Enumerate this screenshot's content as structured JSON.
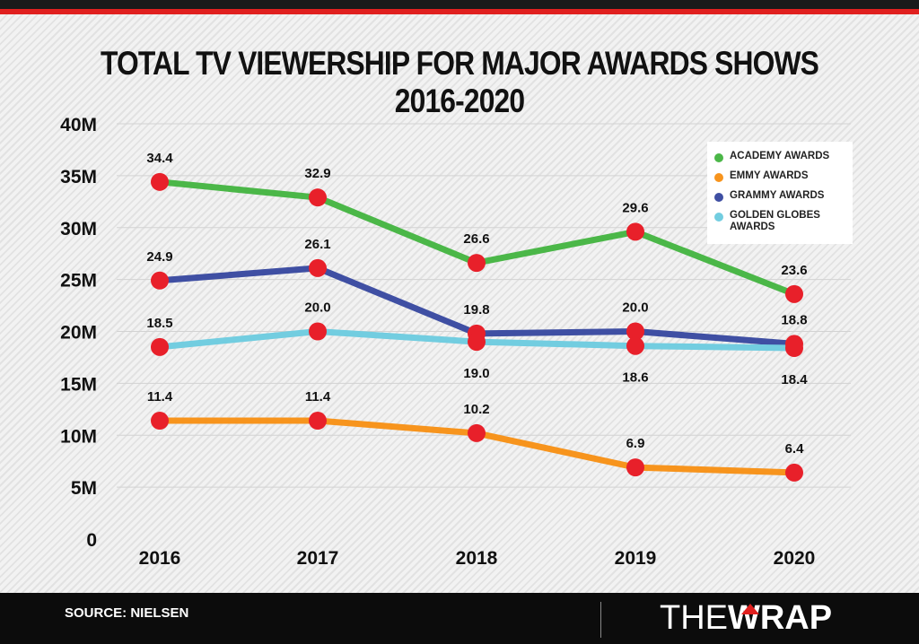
{
  "title": "TOTAL TV VIEWERSHIP FOR MAJOR AWARDS SHOWS 2016-2020",
  "source": "SOURCE: NIELSEN",
  "logo": {
    "part1": "THE",
    "part2": "WRAP"
  },
  "colors": {
    "accent": "#e0201f",
    "marker": "#e8202a"
  },
  "chart_data": {
    "type": "line",
    "title": "TOTAL TV VIEWERSHIP FOR MAJOR AWARDS SHOWS 2016-2020",
    "x": [
      "2016",
      "2017",
      "2018",
      "2019",
      "2020"
    ],
    "ylim": [
      0,
      40
    ],
    "ytick_values": [
      0,
      5,
      10,
      15,
      20,
      25,
      30,
      35,
      40
    ],
    "ytick_labels": [
      "0",
      "5M",
      "10M",
      "15M",
      "20M",
      "25M",
      "30M",
      "35M",
      "40M"
    ],
    "grid": true,
    "legend_position": "top-right",
    "series": [
      {
        "name": "ACADEMY AWARDS",
        "color": "#4bb748",
        "values": [
          34.4,
          32.9,
          26.6,
          29.6,
          23.6
        ],
        "labels": [
          "34.4",
          "32.9",
          "26.6",
          "29.6",
          "23.6"
        ],
        "label_pos": "above"
      },
      {
        "name": "EMMY AWARDS",
        "color": "#f7941d",
        "values": [
          11.4,
          11.4,
          10.2,
          6.9,
          6.4
        ],
        "labels": [
          "11.4",
          "11.4",
          "10.2",
          "6.9",
          "6.4"
        ],
        "label_pos": "above"
      },
      {
        "name": "GRAMMY AWARDS",
        "color": "#3f4fa3",
        "values": [
          24.9,
          26.1,
          19.8,
          20.0,
          18.8
        ],
        "labels": [
          "24.9",
          "26.1",
          "19.8",
          "20.0",
          "18.8"
        ],
        "label_pos": "above"
      },
      {
        "name": "GOLDEN GLOBES AWARDS",
        "color": "#72cde0",
        "values": [
          18.5,
          20.0,
          19.0,
          18.6,
          18.4
        ],
        "labels": [
          "18.5",
          "20.0",
          "19.0",
          "18.6",
          "18.4"
        ],
        "label_pos": "mixed"
      }
    ]
  }
}
